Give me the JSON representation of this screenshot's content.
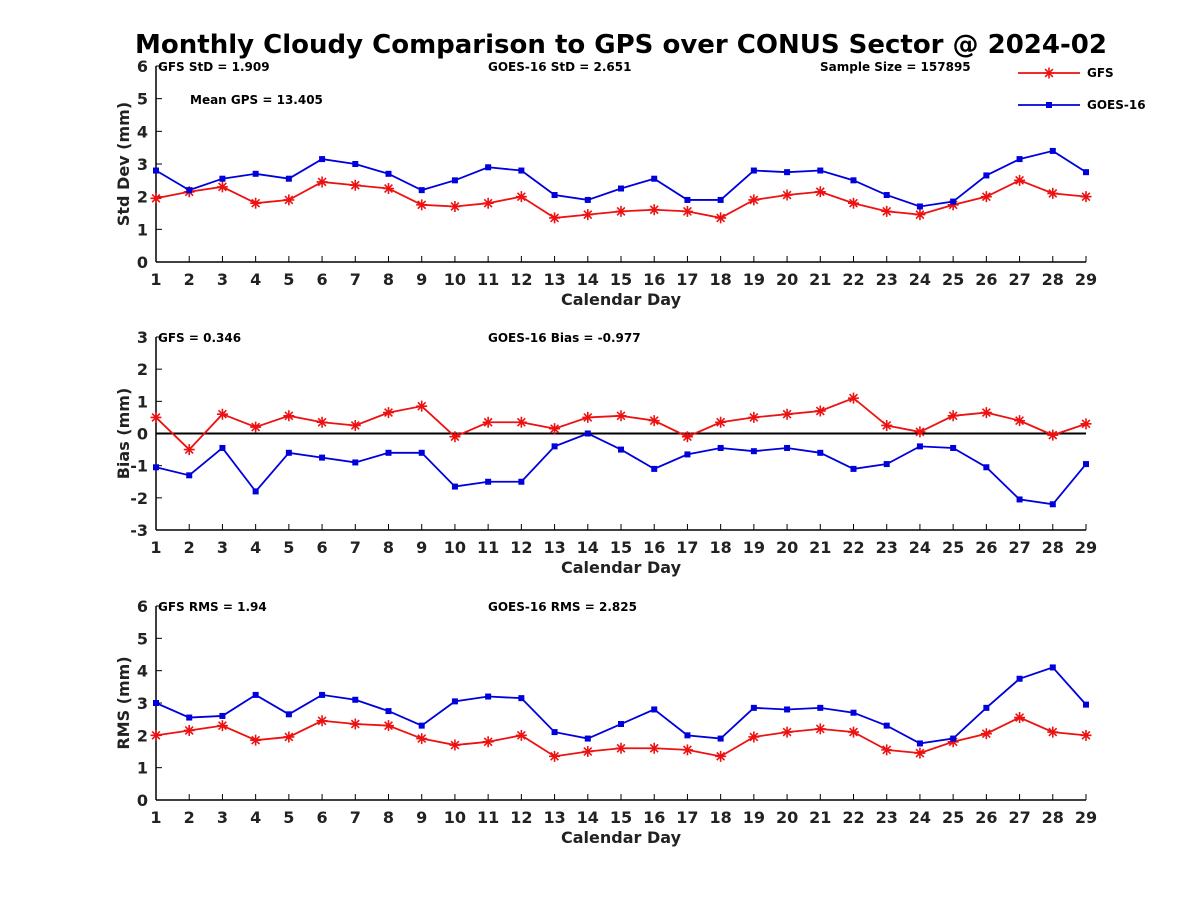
{
  "title": "Monthly Cloudy Comparison to GPS over CONUS Sector @ 2024-02",
  "colors": {
    "gfs": "#ee1111",
    "goes": "#0000dd",
    "axis": "#000000"
  },
  "legend": {
    "placement": "top-right",
    "items": [
      {
        "label": "GFS",
        "marker": "star",
        "color": "#ee1111"
      },
      {
        "label": "GOES-16",
        "marker": "square",
        "color": "#0000dd"
      }
    ]
  },
  "chart_data": [
    {
      "type": "line",
      "xlabel": "Calendar Day",
      "ylabel": "Std Dev (mm)",
      "xlim": [
        1,
        29
      ],
      "ylim": [
        0,
        6
      ],
      "yticks": [
        0,
        1,
        2,
        3,
        4,
        5,
        6
      ],
      "zero_line": false,
      "annotations": [
        "GFS StD = 1.909",
        "GOES-16 StD = 2.651",
        "Sample Size = 157895",
        "Mean GPS = 13.405"
      ],
      "series": [
        {
          "name": "GFS",
          "values": [
            1.95,
            2.15,
            2.3,
            1.8,
            1.9,
            2.45,
            2.35,
            2.25,
            1.75,
            1.7,
            1.8,
            2.0,
            1.35,
            1.45,
            1.55,
            1.6,
            1.55,
            1.35,
            1.9,
            2.05,
            2.15,
            1.8,
            1.55,
            1.45,
            1.75,
            2.0,
            2.5,
            2.1,
            2.0
          ]
        },
        {
          "name": "GOES-16",
          "values": [
            2.8,
            2.2,
            2.55,
            2.7,
            2.55,
            3.15,
            3.0,
            2.7,
            2.2,
            2.5,
            2.9,
            2.8,
            2.05,
            1.9,
            2.25,
            2.55,
            1.9,
            1.9,
            2.8,
            2.75,
            2.8,
            2.5,
            2.05,
            1.7,
            1.85,
            2.65,
            3.15,
            3.4,
            2.75
          ]
        }
      ]
    },
    {
      "type": "line",
      "xlabel": "Calendar Day",
      "ylabel": "Bias (mm)",
      "xlim": [
        1,
        29
      ],
      "ylim": [
        -3,
        3
      ],
      "yticks": [
        -3,
        -2,
        -1,
        0,
        1,
        2,
        3
      ],
      "zero_line": true,
      "annotations": [
        "GFS = 0.346",
        "GOES-16 Bias = -0.977"
      ],
      "series": [
        {
          "name": "GFS",
          "values": [
            0.5,
            -0.5,
            0.6,
            0.2,
            0.55,
            0.35,
            0.25,
            0.65,
            0.85,
            -0.1,
            0.35,
            0.35,
            0.15,
            0.5,
            0.55,
            0.4,
            -0.1,
            0.35,
            0.5,
            0.6,
            0.7,
            1.1,
            0.25,
            0.05,
            0.55,
            0.65,
            0.4,
            -0.05,
            0.3
          ]
        },
        {
          "name": "GOES-16",
          "values": [
            -1.05,
            -1.3,
            -0.45,
            -1.8,
            -0.6,
            -0.75,
            -0.9,
            -0.6,
            -0.6,
            -1.65,
            -1.5,
            -1.5,
            -0.4,
            0.0,
            -0.5,
            -1.1,
            -0.65,
            -0.45,
            -0.55,
            -0.45,
            -0.6,
            -1.1,
            -0.95,
            -0.4,
            -0.45,
            -1.05,
            -2.05,
            -2.2,
            -0.95
          ]
        }
      ]
    },
    {
      "type": "line",
      "xlabel": "Calendar Day",
      "ylabel": "RMS (mm)",
      "xlim": [
        1,
        29
      ],
      "ylim": [
        0,
        6
      ],
      "yticks": [
        0,
        1,
        2,
        3,
        4,
        5,
        6
      ],
      "zero_line": false,
      "annotations": [
        "GFS RMS = 1.94",
        "GOES-16 RMS = 2.825"
      ],
      "series": [
        {
          "name": "GFS",
          "values": [
            2.0,
            2.15,
            2.3,
            1.85,
            1.95,
            2.45,
            2.35,
            2.3,
            1.9,
            1.7,
            1.8,
            2.0,
            1.35,
            1.5,
            1.6,
            1.6,
            1.55,
            1.35,
            1.95,
            2.1,
            2.2,
            2.1,
            1.55,
            1.45,
            1.8,
            2.05,
            2.55,
            2.1,
            2.0
          ]
        },
        {
          "name": "GOES-16",
          "values": [
            3.0,
            2.55,
            2.6,
            3.25,
            2.65,
            3.25,
            3.1,
            2.75,
            2.3,
            3.05,
            3.2,
            3.15,
            2.1,
            1.9,
            2.35,
            2.8,
            2.0,
            1.9,
            2.85,
            2.8,
            2.85,
            2.7,
            2.3,
            1.75,
            1.9,
            2.85,
            3.75,
            4.1,
            2.95
          ]
        }
      ]
    }
  ]
}
